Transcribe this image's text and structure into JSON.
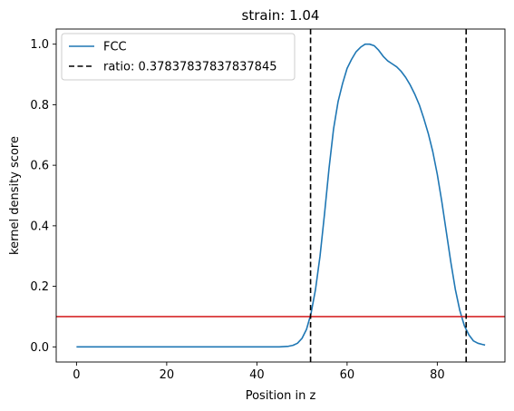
{
  "chart_data": {
    "type": "line",
    "title": "strain: 1.04",
    "xlabel": "Position in z",
    "ylabel": "kernel density score",
    "xlim": [
      -4.5,
      95
    ],
    "ylim": [
      -0.05,
      1.05
    ],
    "xticks": [
      0,
      20,
      40,
      60,
      80
    ],
    "yticks": [
      0.0,
      0.2,
      0.4,
      0.6,
      0.8,
      1.0
    ],
    "xtick_labels": [
      "0",
      "20",
      "40",
      "60",
      "80"
    ],
    "ytick_labels": [
      "0.0",
      "0.2",
      "0.4",
      "0.6",
      "0.8",
      "1.0"
    ],
    "grid": false,
    "legend_position": "top-left",
    "series": [
      {
        "name": "FCC",
        "color": "#1f77b4",
        "x": [
          0,
          10,
          20,
          30,
          40,
          45,
          47,
          48,
          49,
          50,
          51,
          52,
          53,
          54,
          55,
          56,
          57,
          58,
          59,
          60,
          61,
          62,
          63,
          64,
          65,
          66,
          67,
          68,
          69,
          70,
          71,
          72,
          73,
          74,
          75,
          76,
          77,
          78,
          79,
          80,
          81,
          82,
          83,
          84,
          85,
          86,
          87,
          88,
          89,
          90,
          90.6
        ],
        "y": [
          0.0,
          0.0,
          0.0,
          0.0,
          0.0,
          0.0,
          0.002,
          0.005,
          0.012,
          0.028,
          0.058,
          0.11,
          0.19,
          0.3,
          0.44,
          0.59,
          0.72,
          0.81,
          0.87,
          0.92,
          0.95,
          0.975,
          0.99,
          1.0,
          1.0,
          0.995,
          0.98,
          0.96,
          0.945,
          0.935,
          0.925,
          0.91,
          0.89,
          0.865,
          0.835,
          0.8,
          0.755,
          0.705,
          0.645,
          0.57,
          0.48,
          0.38,
          0.28,
          0.19,
          0.12,
          0.07,
          0.04,
          0.02,
          0.012,
          0.008,
          0.006
        ]
      }
    ],
    "vlines": [
      {
        "x": 51.9,
        "color": "#000000",
        "style": "dashed",
        "label": "ratio: 0.37837837837837845"
      },
      {
        "x": 86.4,
        "color": "#000000",
        "style": "dashed",
        "label": ""
      }
    ],
    "hlines": [
      {
        "y": 0.1,
        "color": "#d62728",
        "style": "solid"
      }
    ],
    "legend": [
      {
        "label": "FCC",
        "style": "solid",
        "color": "#1f77b4"
      },
      {
        "label": "ratio: 0.37837837837837845",
        "style": "dashed",
        "color": "#000000"
      }
    ]
  }
}
